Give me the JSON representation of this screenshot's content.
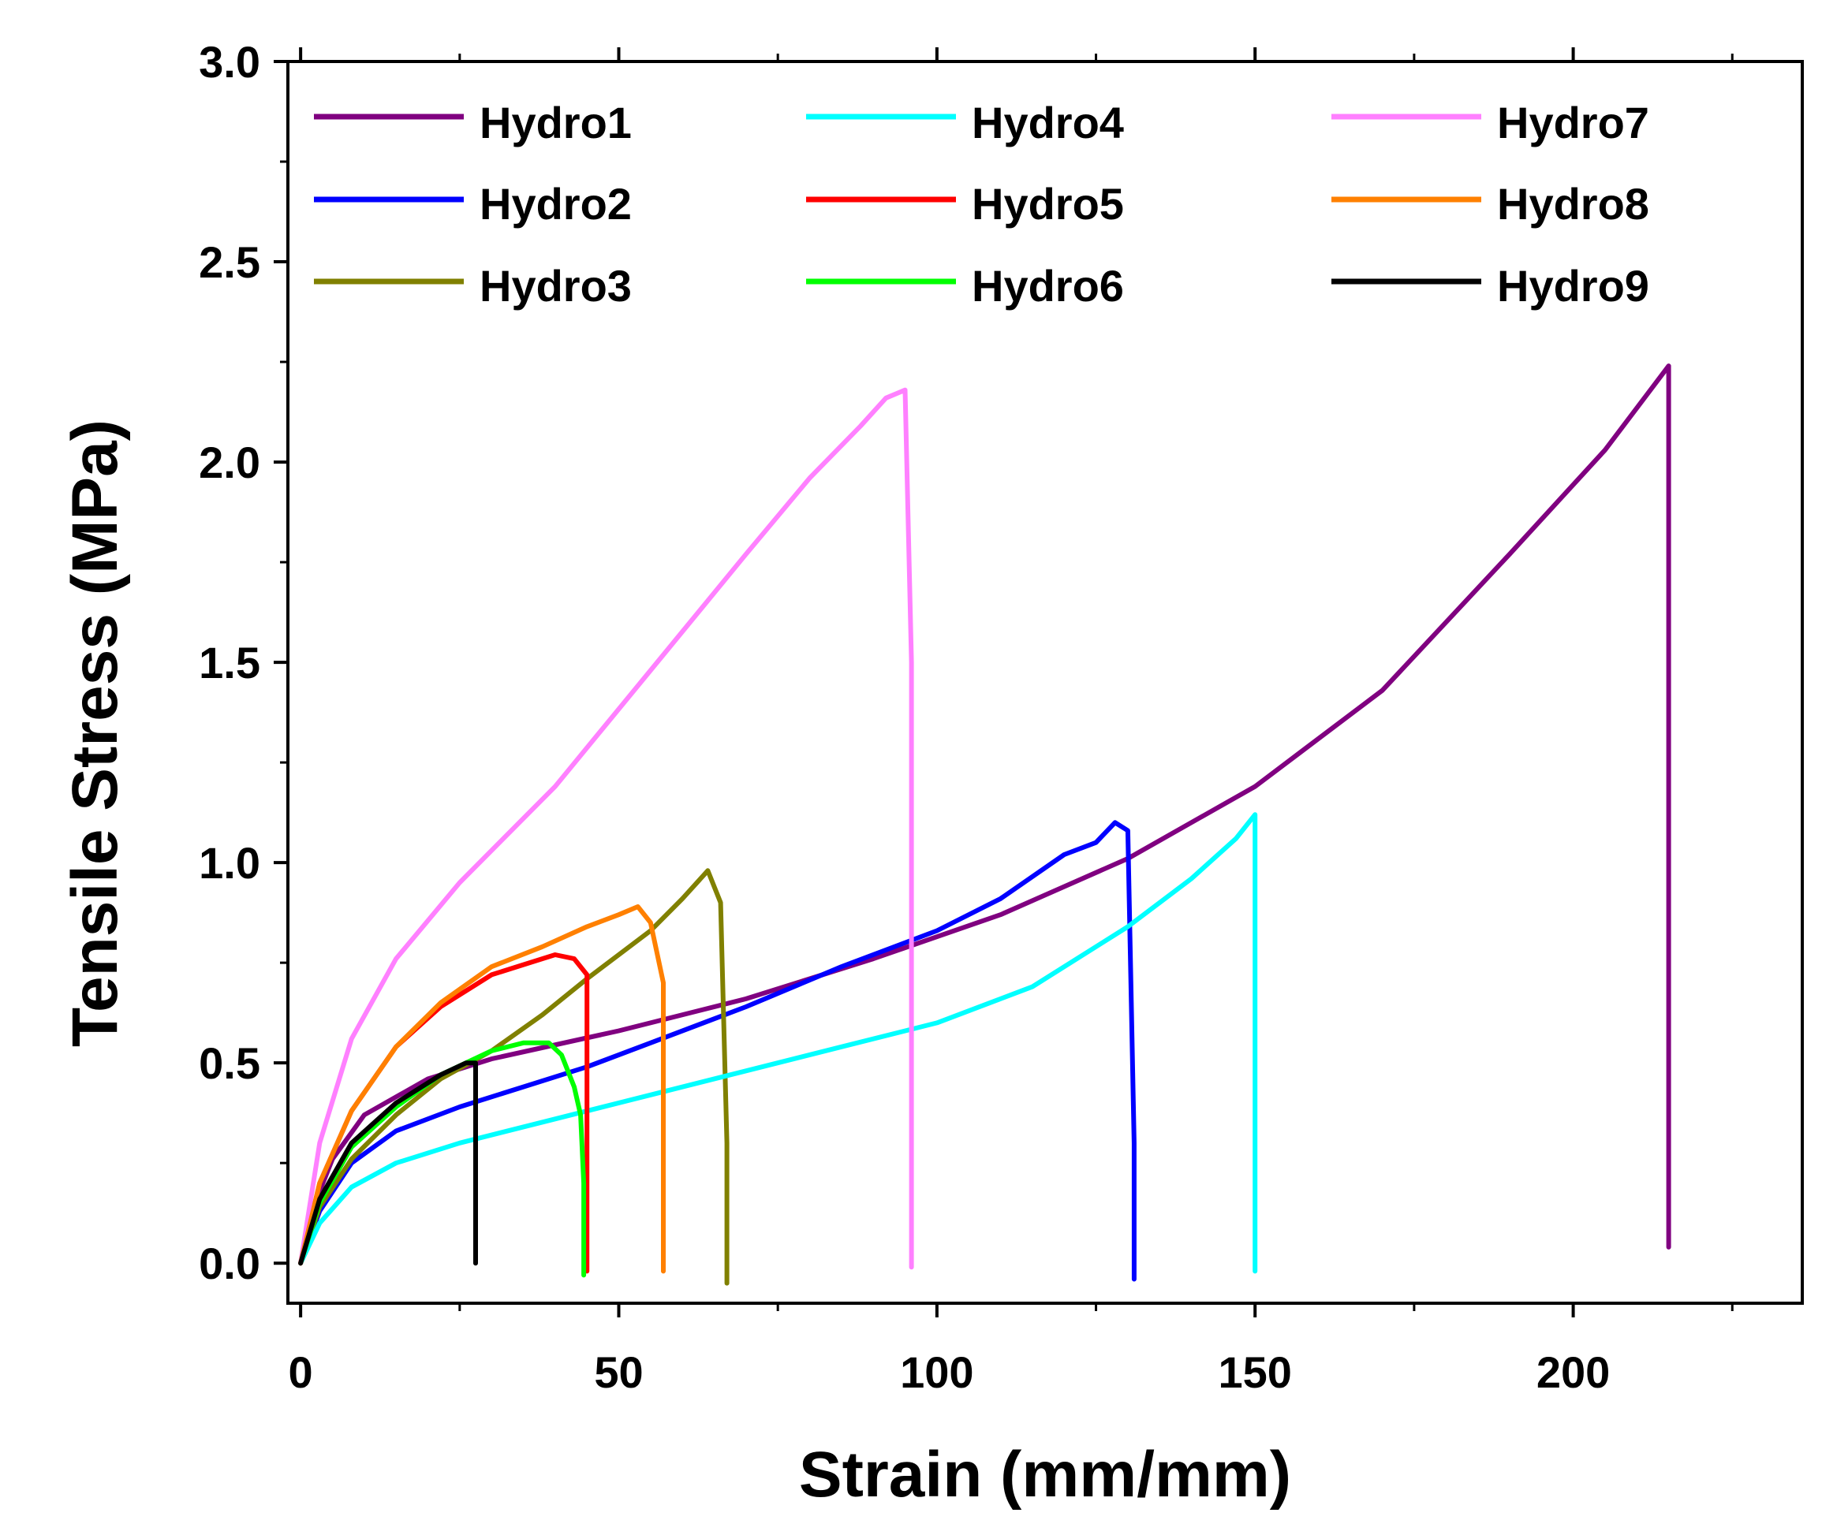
{
  "chart_data": {
    "type": "line",
    "title": "",
    "xlabel": "Strain (mm/mm)",
    "ylabel": "Tensile Stress (MPa)",
    "xlim": [
      -2,
      236
    ],
    "ylim": [
      -0.1,
      3.0
    ],
    "xticks": [
      0,
      50,
      100,
      150,
      200
    ],
    "xtick_labels": [
      "0",
      "50",
      "100",
      "150",
      "200"
    ],
    "yticks": [
      0.0,
      0.5,
      1.0,
      1.5,
      2.0,
      2.5,
      3.0
    ],
    "ytick_labels": [
      "0.0",
      "0.5",
      "1.0",
      "1.5",
      "2.0",
      "2.5",
      "3.0"
    ],
    "grid": false,
    "legend_position": "top",
    "series": [
      {
        "name": "Hydro1",
        "color": "#800080",
        "x": [
          0,
          2,
          5,
          10,
          20,
          30,
          50,
          70,
          90,
          110,
          130,
          150,
          170,
          190,
          205,
          215,
          215
        ],
        "y": [
          0,
          0.14,
          0.26,
          0.37,
          0.46,
          0.51,
          0.58,
          0.66,
          0.76,
          0.87,
          1.01,
          1.19,
          1.43,
          1.77,
          2.03,
          2.24,
          0.04
        ]
      },
      {
        "name": "Hydro2",
        "color": "#0000FF",
        "x": [
          0,
          3,
          8,
          15,
          25,
          35,
          45,
          55,
          70,
          85,
          100,
          110,
          120,
          125,
          128,
          130,
          131,
          131
        ],
        "y": [
          0,
          0.13,
          0.25,
          0.33,
          0.39,
          0.44,
          0.49,
          0.55,
          0.64,
          0.74,
          0.83,
          0.91,
          1.02,
          1.05,
          1.1,
          1.08,
          0.3,
          -0.04
        ]
      },
      {
        "name": "Hydro3",
        "color": "#808000",
        "x": [
          0,
          3,
          8,
          15,
          22,
          30,
          38,
          45,
          50,
          55,
          60,
          64,
          66,
          67,
          67
        ],
        "y": [
          0,
          0.14,
          0.26,
          0.37,
          0.46,
          0.53,
          0.62,
          0.71,
          0.77,
          0.83,
          0.91,
          0.98,
          0.9,
          0.3,
          -0.05
        ]
      },
      {
        "name": "Hydro4",
        "color": "#00FFFF",
        "x": [
          0,
          3,
          8,
          15,
          25,
          40,
          55,
          70,
          85,
          100,
          115,
          130,
          140,
          147,
          150,
          150,
          150
        ],
        "y": [
          0,
          0.1,
          0.19,
          0.25,
          0.3,
          0.36,
          0.42,
          0.48,
          0.54,
          0.6,
          0.69,
          0.84,
          0.96,
          1.06,
          1.12,
          0.9,
          -0.02
        ]
      },
      {
        "name": "Hydro5",
        "color": "#FF0000",
        "x": [
          0,
          3,
          8,
          15,
          22,
          30,
          36,
          40,
          43,
          45,
          45,
          45
        ],
        "y": [
          0,
          0.2,
          0.38,
          0.54,
          0.64,
          0.72,
          0.75,
          0.77,
          0.76,
          0.72,
          0.3,
          -0.02
        ]
      },
      {
        "name": "Hydro6",
        "color": "#00FF00",
        "x": [
          0,
          3,
          8,
          15,
          22,
          30,
          35,
          39,
          41,
          43,
          44,
          44.5,
          44.5
        ],
        "y": [
          0,
          0.15,
          0.29,
          0.39,
          0.47,
          0.53,
          0.55,
          0.55,
          0.52,
          0.44,
          0.37,
          0.2,
          -0.03
        ]
      },
      {
        "name": "Hydro7",
        "color": "#FF80FF",
        "x": [
          0,
          3,
          8,
          15,
          25,
          40,
          55,
          70,
          80,
          88,
          92,
          95,
          96,
          96
        ],
        "y": [
          0,
          0.3,
          0.56,
          0.76,
          0.95,
          1.19,
          1.48,
          1.77,
          1.96,
          2.09,
          2.16,
          2.18,
          1.5,
          -0.01
        ]
      },
      {
        "name": "Hydro8",
        "color": "#FF8000",
        "x": [
          0,
          3,
          8,
          15,
          22,
          30,
          38,
          45,
          50,
          53,
          55,
          57,
          57
        ],
        "y": [
          0,
          0.2,
          0.38,
          0.54,
          0.65,
          0.74,
          0.79,
          0.84,
          0.87,
          0.89,
          0.85,
          0.7,
          -0.02
        ]
      },
      {
        "name": "Hydro9",
        "color": "#000000",
        "x": [
          0,
          3,
          8,
          15,
          22,
          26,
          27.5,
          27.5,
          27.5
        ],
        "y": [
          0,
          0.16,
          0.3,
          0.4,
          0.47,
          0.5,
          0.5,
          0.3,
          0.0
        ]
      }
    ]
  }
}
